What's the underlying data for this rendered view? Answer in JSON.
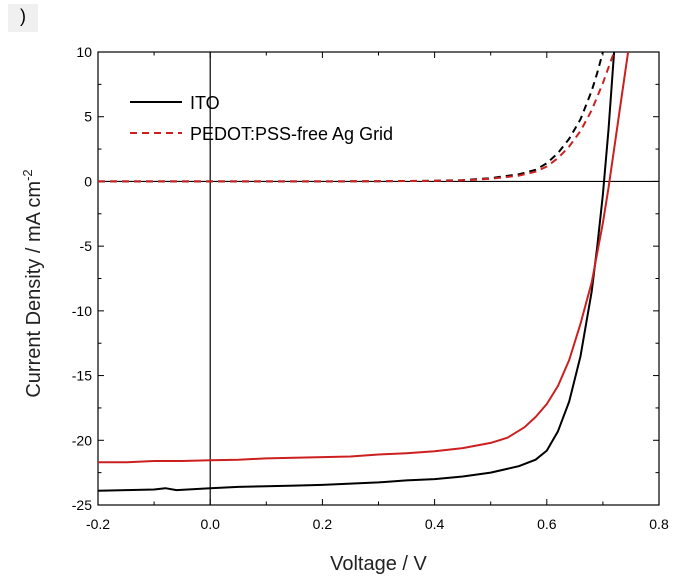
{
  "panel_label": ")",
  "chart_data": {
    "type": "line",
    "xlabel": "Voltage / V",
    "ylabel": "Current Density / mA cm",
    "ylabel_superscript": "-2",
    "xlim": [
      -0.2,
      0.8
    ],
    "ylim": [
      -25,
      10
    ],
    "x_ticks": [
      -0.2,
      0.0,
      0.2,
      0.4,
      0.6,
      0.8
    ],
    "x_tick_labels": [
      "-0.2",
      "0.0",
      "0.2",
      "0.4",
      "0.6",
      "0.8"
    ],
    "y_ticks": [
      -25,
      -20,
      -15,
      -10,
      -5,
      0,
      5,
      10
    ],
    "y_tick_labels": [
      "-25",
      "-20",
      "-15",
      "-10",
      "-5",
      "0",
      "5",
      "10"
    ],
    "grid": false,
    "legend_position": "top-left",
    "legend": [
      {
        "label": "ITO",
        "color": "#000000",
        "style": "solid"
      },
      {
        "label": "PEDOT:PSS-free Ag Grid",
        "color": "#cc2020",
        "style": "dashed"
      }
    ],
    "reference_lines": {
      "x": 0.0,
      "y": 0.0
    },
    "series": [
      {
        "color": "#000000",
        "style": "solid",
        "x": [
          -0.2,
          -0.15,
          -0.1,
          -0.08,
          -0.06,
          0.0,
          0.05,
          0.1,
          0.15,
          0.2,
          0.25,
          0.3,
          0.35,
          0.4,
          0.45,
          0.5,
          0.55,
          0.58,
          0.6,
          0.62,
          0.64,
          0.66,
          0.68,
          0.69,
          0.7,
          0.71,
          0.72
        ],
        "y": [
          -23.9,
          -23.85,
          -23.8,
          -23.7,
          -23.85,
          -23.7,
          -23.6,
          -23.55,
          -23.5,
          -23.45,
          -23.35,
          -23.25,
          -23.1,
          -23.0,
          -22.8,
          -22.5,
          -22.0,
          -21.5,
          -20.8,
          -19.3,
          -17.0,
          -13.5,
          -8.5,
          -5.0,
          -1.0,
          4.0,
          10.0
        ]
      },
      {
        "color": "#cc2020",
        "style": "solid",
        "x": [
          -0.2,
          -0.15,
          -0.1,
          -0.05,
          0.0,
          0.05,
          0.1,
          0.15,
          0.2,
          0.25,
          0.3,
          0.35,
          0.4,
          0.45,
          0.5,
          0.53,
          0.56,
          0.58,
          0.6,
          0.62,
          0.64,
          0.66,
          0.68,
          0.7,
          0.71,
          0.72,
          0.73,
          0.745
        ],
        "y": [
          -21.7,
          -21.7,
          -21.6,
          -21.6,
          -21.55,
          -21.5,
          -21.4,
          -21.35,
          -21.3,
          -21.25,
          -21.1,
          -21.0,
          -20.85,
          -20.6,
          -20.2,
          -19.8,
          -19.0,
          -18.2,
          -17.2,
          -15.8,
          -13.8,
          -11.0,
          -7.8,
          -3.2,
          -0.5,
          2.5,
          5.5,
          10.0
        ]
      },
      {
        "color": "#000000",
        "style": "dashed",
        "x": [
          -0.2,
          0.0,
          0.2,
          0.3,
          0.4,
          0.45,
          0.5,
          0.55,
          0.58,
          0.6,
          0.62,
          0.64,
          0.66,
          0.68,
          0.69,
          0.7
        ],
        "y": [
          0,
          0,
          0,
          0.02,
          0.05,
          0.1,
          0.25,
          0.55,
          0.9,
          1.4,
          2.2,
          3.3,
          4.8,
          7.0,
          8.4,
          10.0
        ]
      },
      {
        "color": "#cc2020",
        "style": "dashed",
        "x": [
          -0.2,
          0.0,
          0.2,
          0.3,
          0.4,
          0.45,
          0.5,
          0.55,
          0.58,
          0.6,
          0.62,
          0.64,
          0.66,
          0.68,
          0.7,
          0.71,
          0.72
        ],
        "y": [
          0,
          0,
          0,
          0.02,
          0.04,
          0.08,
          0.2,
          0.45,
          0.75,
          1.15,
          1.8,
          2.7,
          3.9,
          5.5,
          7.6,
          8.8,
          10.0
        ]
      }
    ]
  }
}
